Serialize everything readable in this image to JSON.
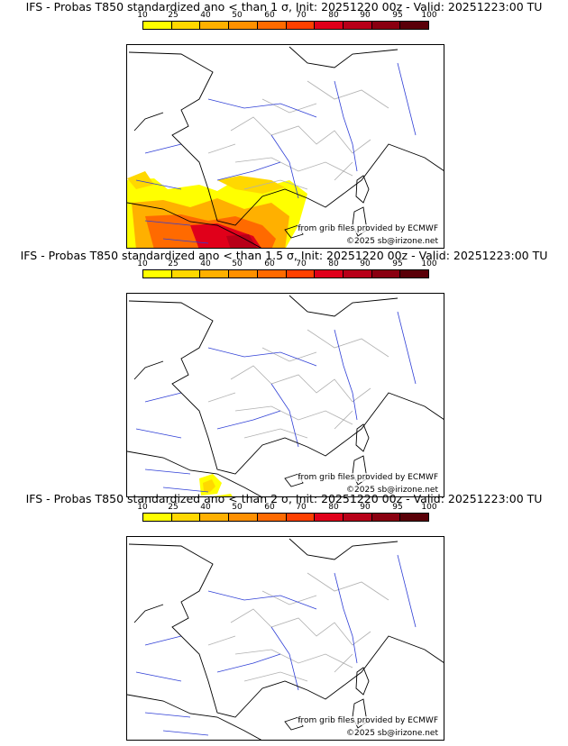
{
  "colorbar": {
    "labels": [
      "10",
      "25",
      "40",
      "50",
      "60",
      "70",
      "80",
      "90",
      "95",
      "100"
    ],
    "colors": [
      "#ffff00",
      "#ffd800",
      "#ffb000",
      "#ff9000",
      "#ff6a00",
      "#ff4000",
      "#e0001a",
      "#b80018",
      "#8a0010",
      "#5a0008"
    ]
  },
  "panels": [
    {
      "title": "IFS - Probas T850  standardized ano < than 1 σ, Init: 20251220 00z - Valid: 20251223:00 TU",
      "credit_line1": "from grib files provided by ECMWF",
      "credit_line2": "©2025 sb@irizone.net",
      "signal": "strong"
    },
    {
      "title": "IFS - Probas T850  standardized ano < than 1.5 σ, Init: 20251220 00z - Valid: 20251223:00 TU",
      "credit_line1": "from grib files provided by ECMWF",
      "credit_line2": "©2025 sb@irizone.net",
      "signal": "weak"
    },
    {
      "title": "IFS - Probas T850  standardized ano < than 2 σ, Init: 20251220 00z - Valid: 20251223:00 TU",
      "credit_line1": "from grib files provided by ECMWF",
      "credit_line2": "©2025 sb@irizone.net",
      "signal": "none"
    }
  ]
}
